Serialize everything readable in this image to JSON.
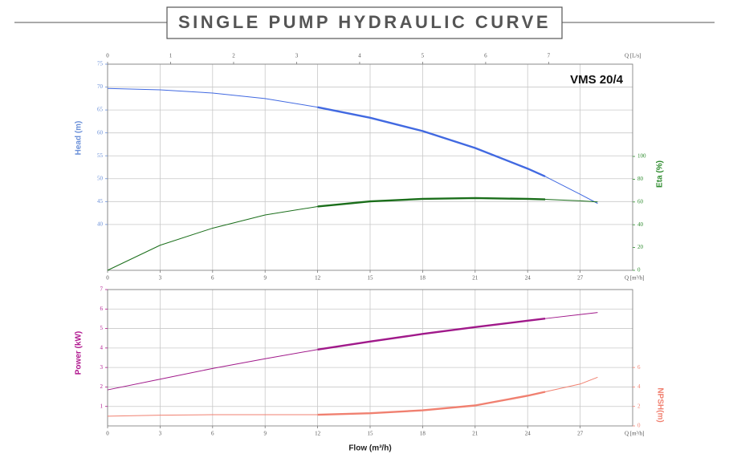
{
  "title": "SINGLE PUMP HYDRAULIC CURVE",
  "chart_data": [
    {
      "type": "line",
      "annotation": "VMS 20/4",
      "x": [
        0,
        3,
        6,
        9,
        12,
        15,
        18,
        21,
        24,
        25,
        27,
        28
      ],
      "xlim": [
        0,
        30
      ],
      "xticks": [
        0,
        3,
        6,
        9,
        12,
        15,
        18,
        21,
        24,
        27
      ],
      "xlabel": "Q [m³/h]",
      "x2lim": [
        0,
        8.333
      ],
      "x2ticks": [
        0,
        1,
        2,
        3,
        4,
        5,
        6,
        7
      ],
      "x2label": "Q [L/s]",
      "ylim": [
        30,
        75
      ],
      "yticks": [
        40,
        45,
        50,
        55,
        60,
        65,
        70,
        75
      ],
      "ylabel": "Head (m)",
      "ycolor": "#6a8fd8",
      "y2lim": [
        0,
        181
      ],
      "y2ticks": [
        0,
        20,
        40,
        60,
        80,
        100
      ],
      "y2label": "Eta (%)",
      "y2color": "#2e8b2e",
      "highlight_x": [
        12,
        25
      ],
      "grid": true,
      "series": [
        {
          "name": "Head (m)",
          "color": "#4169e1",
          "values": [
            69.7,
            69.4,
            68.7,
            67.5,
            65.6,
            63.3,
            60.4,
            56.7,
            52.2,
            50.5,
            46.6,
            44.6
          ]
        },
        {
          "name": "Eta (%)",
          "color": "#1a6e1a",
          "axis": "y2",
          "values": [
            0,
            22,
            37,
            48.6,
            56,
            60.5,
            62.7,
            63.4,
            62.7,
            62.3,
            61,
            60
          ]
        }
      ]
    },
    {
      "type": "line",
      "x": [
        0,
        3,
        6,
        9,
        12,
        15,
        18,
        21,
        24,
        25,
        27,
        28
      ],
      "xlim": [
        0,
        30
      ],
      "xticks": [
        0,
        3,
        6,
        9,
        12,
        15,
        18,
        21,
        24,
        27
      ],
      "xlabel": "Q [m³/h]",
      "xtitle": "Flow (m³/h)",
      "ylim": [
        0,
        7
      ],
      "yticks": [
        1,
        2,
        3,
        4,
        5,
        6,
        7
      ],
      "ylabel": "Power (kW)",
      "ycolor": "#b0178f",
      "y2lim": [
        0,
        14
      ],
      "y2ticks": [
        0,
        2,
        4,
        6
      ],
      "y2label": "NPSH(m)",
      "y2color": "#f08070",
      "highlight_x": [
        12,
        25
      ],
      "grid": true,
      "series": [
        {
          "name": "Power (kW)",
          "color": "#a0198a",
          "values": [
            1.85,
            2.4,
            2.95,
            3.45,
            3.92,
            4.33,
            4.72,
            5.07,
            5.4,
            5.51,
            5.72,
            5.82
          ]
        },
        {
          "name": "NPSH(m)",
          "color": "#f08070",
          "axis": "y2",
          "values": [
            1.0,
            1.1,
            1.15,
            1.15,
            1.15,
            1.3,
            1.6,
            2.1,
            3.1,
            3.5,
            4.3,
            5.0
          ]
        }
      ]
    }
  ]
}
